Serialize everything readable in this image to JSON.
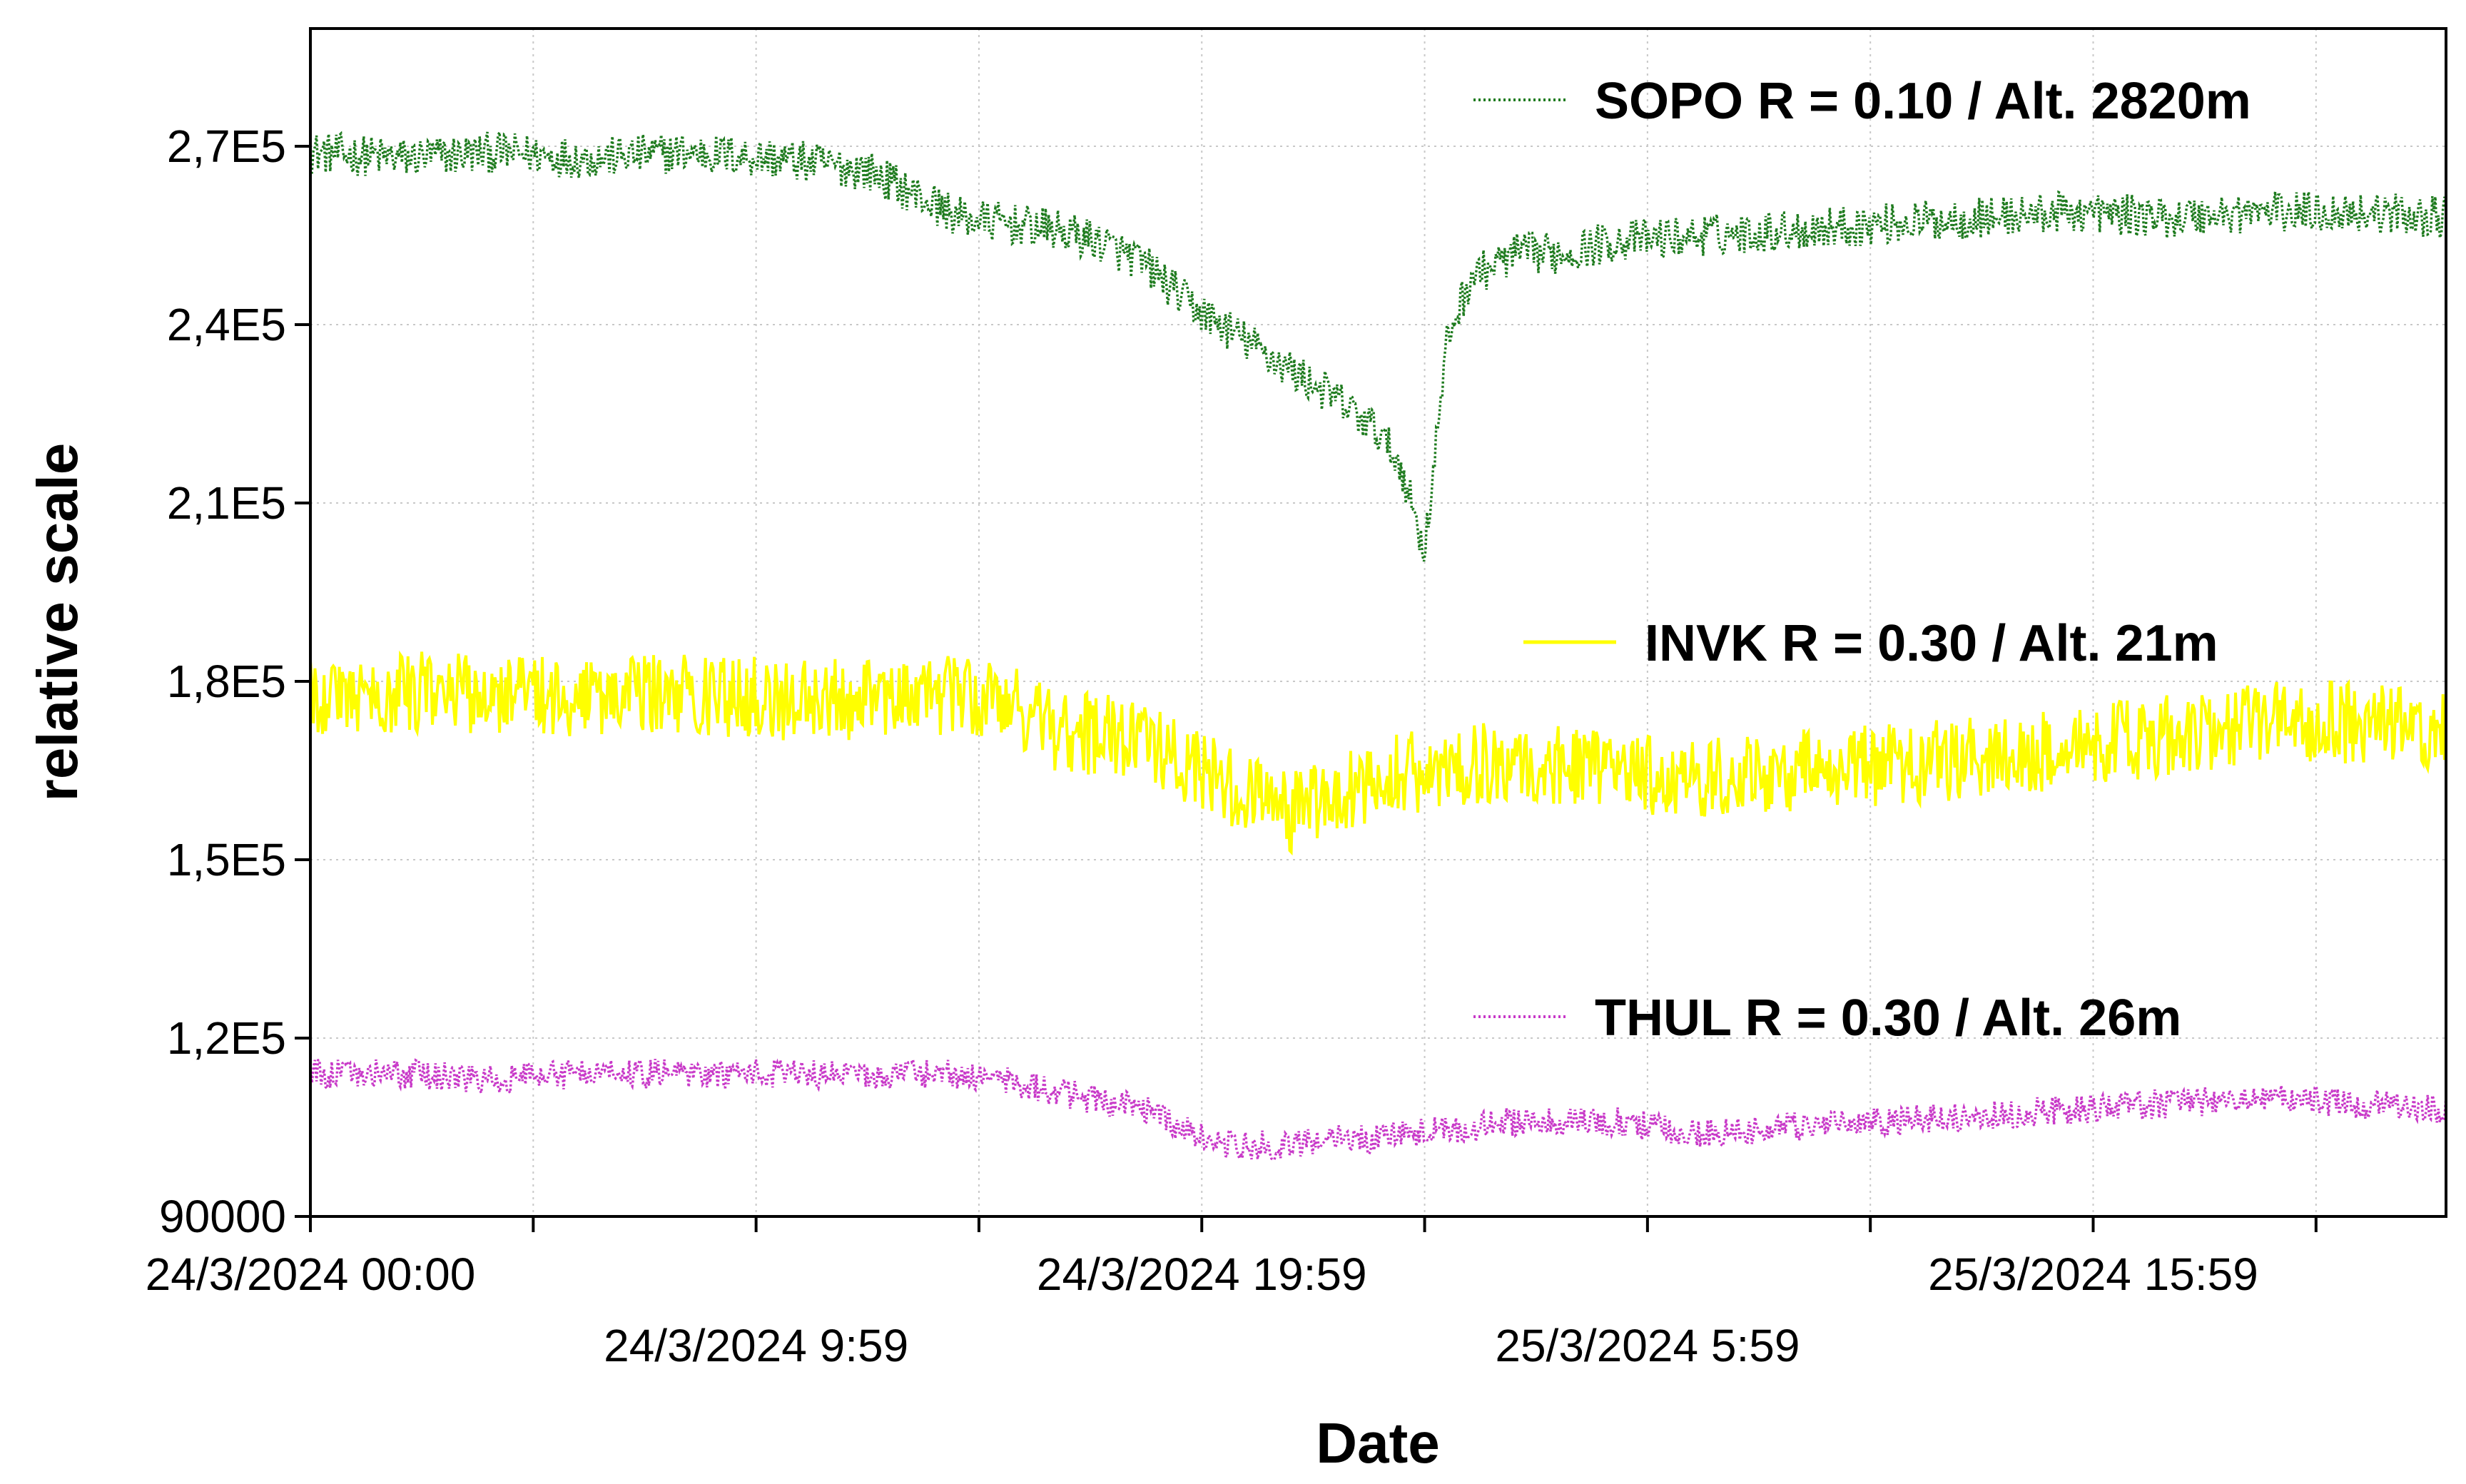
{
  "chart_data": {
    "type": "line",
    "title": "",
    "xlabel": "Date",
    "ylabel": "relative scale",
    "ylim": [
      90000,
      290000
    ],
    "xlim_hours": [
      0,
      46
    ],
    "grid": true,
    "legend_position": "inside-right",
    "y_ticks": [
      {
        "value": 90000,
        "label": "90000"
      },
      {
        "value": 120000,
        "label": "1,2E5"
      },
      {
        "value": 150000,
        "label": "1,5E5"
      },
      {
        "value": 180000,
        "label": "1,8E5"
      },
      {
        "value": 210000,
        "label": "2,1E5"
      },
      {
        "value": 240000,
        "label": "2,4E5"
      },
      {
        "value": 270000,
        "label": "2,7E5"
      }
    ],
    "x_tick_hours": [
      0,
      4.8,
      9.6,
      14.4,
      19.2,
      24,
      28.8,
      33.6,
      38.4,
      43.2
    ],
    "x_labels": [
      {
        "hours": 0,
        "label": "24/3/2024 00:00",
        "row": 1
      },
      {
        "hours": 9.6,
        "label": "24/3/2024 9:59",
        "row": 2
      },
      {
        "hours": 19.2,
        "label": "24/3/2024 19:59",
        "row": 1
      },
      {
        "hours": 28.8,
        "label": "25/3/2024 5:59",
        "row": 2
      },
      {
        "hours": 38.4,
        "label": "25/3/2024 15:59",
        "row": 1
      }
    ],
    "series": [
      {
        "name": "SOPO R = 0.10 / Alt. 2820m",
        "color": "#1e7b1e",
        "style": "dotted",
        "noise": 3500,
        "x_hours": [
          0,
          2,
          4,
          6,
          8,
          10,
          12,
          13,
          14,
          15,
          16,
          17,
          18,
          19,
          20,
          21,
          22,
          23,
          23.5,
          24,
          24.5,
          25,
          26,
          27,
          28,
          30,
          32,
          34,
          36,
          38,
          40,
          42,
          44,
          46
        ],
        "values": [
          269000,
          268000,
          269000,
          268000,
          269000,
          268000,
          266000,
          262000,
          258000,
          257000,
          256000,
          254000,
          250000,
          243000,
          238000,
          233000,
          228000,
          222000,
          216000,
          202000,
          238000,
          248000,
          252000,
          252000,
          254000,
          255000,
          256000,
          257000,
          258000,
          259000,
          258000,
          259000,
          259000,
          258000
        ]
      },
      {
        "name": "INVK R = 0.30 / Alt. 21m",
        "color": "#ffff00",
        "style": "solid",
        "noise": 7000,
        "x_hours": [
          0,
          2,
          4,
          6,
          8,
          10,
          12,
          14,
          15,
          16,
          18,
          19,
          20,
          21,
          22,
          23,
          24,
          25,
          26,
          28,
          30,
          32,
          34,
          36,
          38,
          40,
          42,
          44,
          46
        ],
        "values": [
          178000,
          178000,
          178000,
          177000,
          178000,
          177000,
          177000,
          178000,
          177000,
          172000,
          170000,
          165000,
          162000,
          158000,
          160000,
          164000,
          165000,
          166000,
          167000,
          165000,
          164000,
          165000,
          166000,
          167000,
          169000,
          171000,
          173000,
          173000,
          172000
        ]
      },
      {
        "name": "THUL R = 0.30 / Alt. 26m",
        "color": "#c839c8",
        "style": "dotted",
        "noise": 2500,
        "x_hours": [
          0,
          2,
          4,
          6,
          8,
          10,
          12,
          14,
          15,
          16,
          18,
          19,
          20,
          21,
          22,
          23,
          24,
          25,
          26,
          28,
          30,
          32,
          34,
          36,
          38,
          40,
          42,
          44,
          46
        ],
        "values": [
          114000,
          114000,
          113000,
          114000,
          114000,
          114000,
          114000,
          114000,
          113000,
          111000,
          108000,
          104000,
          102000,
          102000,
          103000,
          103000,
          104000,
          105000,
          106000,
          106000,
          104000,
          105000,
          106000,
          107000,
          108000,
          109000,
          110000,
          109000,
          108000
        ]
      }
    ]
  }
}
